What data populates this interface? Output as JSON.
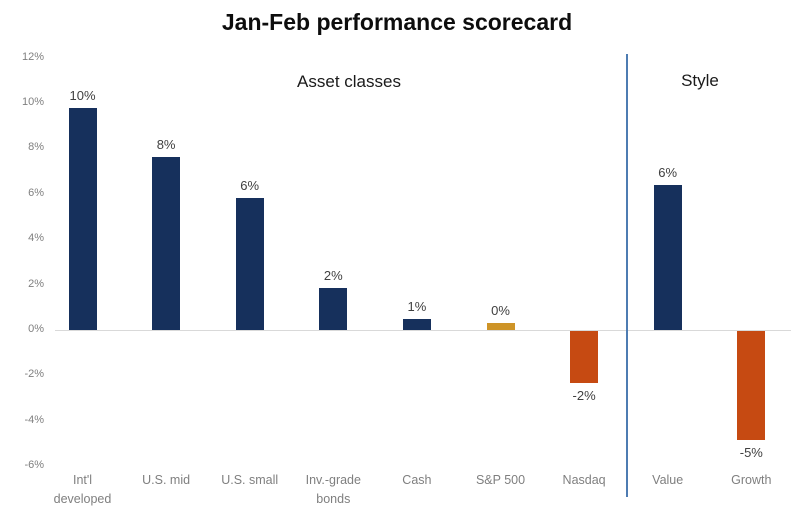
{
  "title": "Jan-Feb performance scorecard",
  "sections": [
    {
      "label": "Asset classes"
    },
    {
      "label": "Style"
    }
  ],
  "colors": {
    "navy": "#16305c",
    "gold": "#ce9427",
    "orange": "#c64a12",
    "divider_blue": "#4e7cb2",
    "axis_line": "#d9d9d9",
    "value_label_text": "#404040",
    "tick_text": "#7f7f7f",
    "category_text": "#7f7f7f",
    "title_text": "#0d0d0d"
  },
  "chart_data": {
    "type": "bar",
    "title": "Jan-Feb performance scorecard",
    "ylabel": "",
    "xlabel": "",
    "ylim": [
      -6,
      12
    ],
    "grid": false,
    "legend": false,
    "yticks": [
      {
        "value": 12,
        "label": "12%"
      },
      {
        "value": 10,
        "label": "10%"
      },
      {
        "value": 8,
        "label": "8%"
      },
      {
        "value": 6,
        "label": "6%"
      },
      {
        "value": 4,
        "label": "4%"
      },
      {
        "value": 2,
        "label": "2%"
      },
      {
        "value": 0,
        "label": "0%"
      },
      {
        "value": -2,
        "label": "-2%"
      },
      {
        "value": -4,
        "label": "-4%"
      },
      {
        "value": -6,
        "label": "-6%"
      }
    ],
    "groups": [
      {
        "name": "Asset classes",
        "bars": [
          {
            "category": "Int'l\ndeveloped",
            "label": "10%",
            "value": 10,
            "bar_height_pct": 9.8,
            "color": "navy"
          },
          {
            "category": "U.S. mid",
            "label": "8%",
            "value": 8,
            "bar_height_pct": 7.6,
            "color": "navy"
          },
          {
            "category": "U.S. small",
            "label": "6%",
            "value": 6,
            "bar_height_pct": 5.8,
            "color": "navy"
          },
          {
            "category": "Inv.-grade\nbonds",
            "label": "2%",
            "value": 2,
            "bar_height_pct": 1.85,
            "color": "navy"
          },
          {
            "category": "Cash",
            "label": "1%",
            "value": 1,
            "bar_height_pct": 0.5,
            "color": "navy"
          },
          {
            "category": "S&P 500",
            "label": "0%",
            "value": 0,
            "bar_height_pct": 0.3,
            "color": "gold"
          },
          {
            "category": "Nasdaq",
            "label": "-2%",
            "value": -2,
            "bar_height_pct": -2.3,
            "color": "orange"
          }
        ]
      },
      {
        "name": "Style",
        "bars": [
          {
            "category": "Value",
            "label": "6%",
            "value": 6,
            "bar_height_pct": 6.4,
            "color": "navy"
          },
          {
            "category": "Growth",
            "label": "-5%",
            "value": -5,
            "bar_height_pct": -4.8,
            "color": "orange"
          }
        ]
      }
    ]
  }
}
